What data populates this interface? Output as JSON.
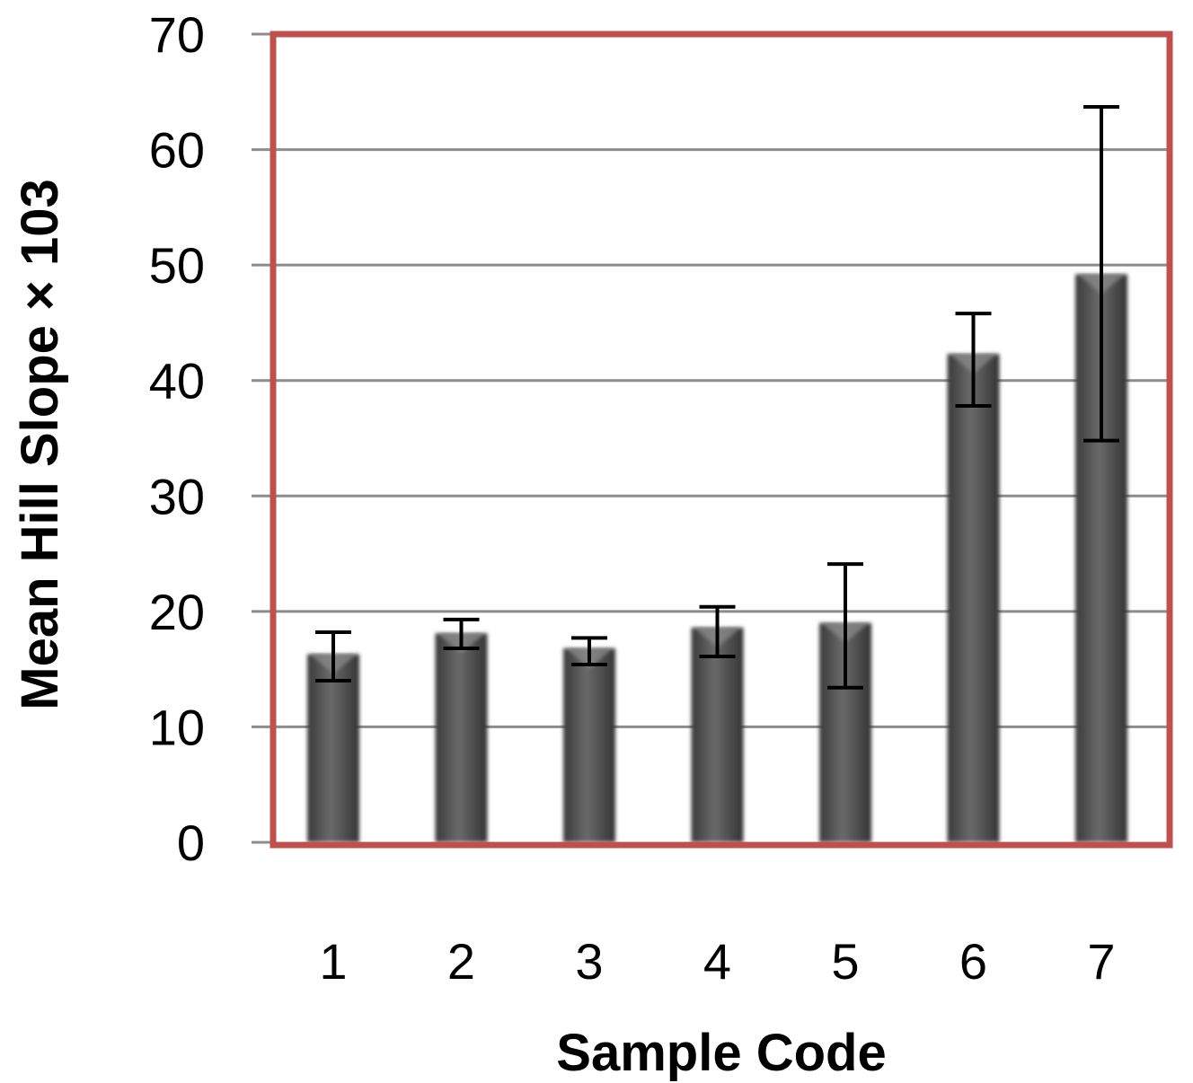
{
  "chart_data": {
    "type": "bar",
    "title": "",
    "xlabel": "Sample Code",
    "ylabel": "Mean Hill Slope × 103",
    "categories": [
      "1",
      "2",
      "3",
      "4",
      "5",
      "6",
      "7"
    ],
    "values": [
      16.3,
      18.1,
      16.8,
      18.6,
      19.0,
      42.3,
      49.2
    ],
    "error_low": [
      14.0,
      16.8,
      15.4,
      16.1,
      13.4,
      37.8,
      34.8
    ],
    "error_high": [
      18.2,
      19.3,
      17.7,
      20.4,
      24.1,
      45.8,
      63.7
    ],
    "ylim": [
      0,
      70
    ],
    "yticks": [
      0,
      10,
      20,
      30,
      40,
      50,
      60,
      70
    ],
    "grid": true,
    "legend": "none",
    "colors": {
      "bar": "#4f4f4f",
      "plot_border": "#c0504d",
      "gridline": "#8c8c8c",
      "error_bar": "#000000"
    }
  }
}
